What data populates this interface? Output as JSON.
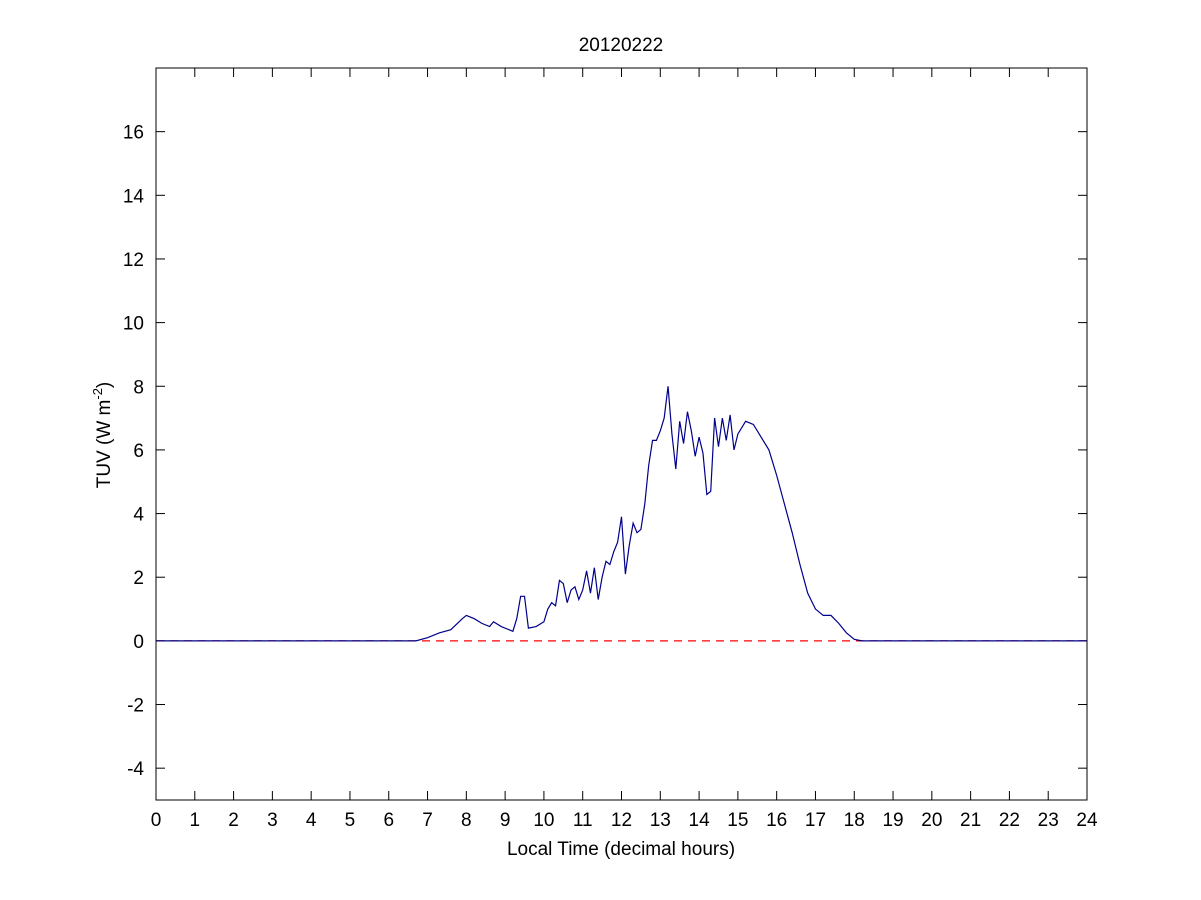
{
  "chart_data": {
    "type": "line",
    "title": "20120222",
    "xlabel": "Local Time (decimal hours)",
    "ylabel": "TUV (W m",
    "ylabel_superscript": "-2",
    "ylabel_end": ")",
    "xlim": [
      0,
      24
    ],
    "ylim": [
      -5,
      18
    ],
    "xticks": [
      0,
      1,
      2,
      3,
      4,
      5,
      6,
      7,
      8,
      9,
      10,
      11,
      12,
      13,
      14,
      15,
      16,
      17,
      18,
      19,
      20,
      21,
      22,
      23,
      24
    ],
    "yticks": [
      -4,
      -2,
      0,
      2,
      4,
      6,
      8,
      10,
      12,
      14,
      16
    ],
    "series": [
      {
        "color": "#ff0000",
        "style": "dashed",
        "x": [
          0,
          24
        ],
        "values": [
          0,
          0
        ]
      },
      {
        "color": "#00008b",
        "style": "solid",
        "x": [
          0,
          6.7,
          7.0,
          7.3,
          7.6,
          7.9,
          8.0,
          8.2,
          8.4,
          8.6,
          8.7,
          8.9,
          9.1,
          9.2,
          9.3,
          9.4,
          9.5,
          9.6,
          9.8,
          10.0,
          10.1,
          10.2,
          10.3,
          10.4,
          10.5,
          10.6,
          10.7,
          10.8,
          10.9,
          11.0,
          11.1,
          11.2,
          11.3,
          11.4,
          11.5,
          11.6,
          11.7,
          11.8,
          11.9,
          12.0,
          12.1,
          12.2,
          12.3,
          12.4,
          12.5,
          12.6,
          12.7,
          12.8,
          12.9,
          13.0,
          13.1,
          13.2,
          13.3,
          13.4,
          13.5,
          13.6,
          13.7,
          13.8,
          13.9,
          14.0,
          14.1,
          14.2,
          14.3,
          14.4,
          14.5,
          14.6,
          14.7,
          14.8,
          14.9,
          15.0,
          15.1,
          15.2,
          15.4,
          15.6,
          15.8,
          16.0,
          16.2,
          16.4,
          16.6,
          16.8,
          17.0,
          17.2,
          17.4,
          17.6,
          17.8,
          18.0,
          18.2,
          24
        ],
        "values": [
          0,
          0,
          0.1,
          0.25,
          0.35,
          0.7,
          0.8,
          0.7,
          0.55,
          0.45,
          0.6,
          0.45,
          0.35,
          0.3,
          0.7,
          1.4,
          1.4,
          0.4,
          0.45,
          0.6,
          1.0,
          1.2,
          1.1,
          1.9,
          1.8,
          1.2,
          1.6,
          1.7,
          1.3,
          1.6,
          2.2,
          1.5,
          2.3,
          1.3,
          2.0,
          2.5,
          2.4,
          2.8,
          3.1,
          3.9,
          2.1,
          3.0,
          3.7,
          3.4,
          3.5,
          4.3,
          5.5,
          6.3,
          6.3,
          6.6,
          7.0,
          8.0,
          6.5,
          5.4,
          6.9,
          6.2,
          7.2,
          6.6,
          5.8,
          6.4,
          5.9,
          4.6,
          4.7,
          7.0,
          6.1,
          7.0,
          6.3,
          7.1,
          6.0,
          6.5,
          6.7,
          6.9,
          6.8,
          6.4,
          6.0,
          5.2,
          4.3,
          3.4,
          2.4,
          1.5,
          1.0,
          0.8,
          0.8,
          0.55,
          0.25,
          0.05,
          0,
          0
        ]
      }
    ]
  }
}
